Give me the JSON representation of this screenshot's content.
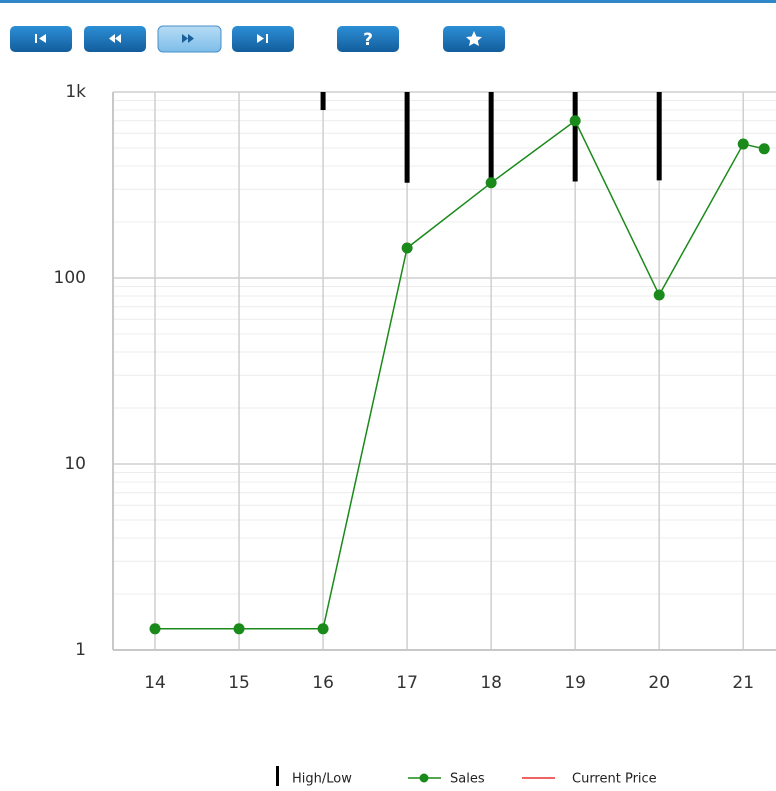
{
  "toolbar": {
    "help_label": "?"
  },
  "chart_data": {
    "type": "line",
    "log_scale": true,
    "grid": true,
    "xlim": [
      13.5,
      21.39
    ],
    "xticks": [
      14,
      15,
      16,
      17,
      18,
      19,
      20,
      21
    ],
    "ylim": [
      1,
      1000
    ],
    "yticks": [
      1,
      10,
      100,
      {
        "value": 1000,
        "label": "1k"
      }
    ],
    "series": [
      {
        "name": "High/Low",
        "type": "highlow",
        "color": "#000000",
        "x": [
          16,
          17,
          18,
          19,
          20
        ],
        "high": [
          1000,
          1000,
          1000,
          1000,
          1000
        ],
        "low": [
          800,
          325,
          325,
          330,
          335
        ]
      },
      {
        "name": "Sales",
        "type": "line",
        "color": "#1a8a1a",
        "x": [
          14,
          15,
          16,
          17,
          18,
          19,
          20,
          21,
          21.25
        ],
        "values": [
          1.3,
          1.3,
          1.3,
          145,
          325,
          700,
          81,
          525,
          495
        ]
      },
      {
        "name": "Current Price",
        "type": "line",
        "color": "#e83030",
        "x": [],
        "values": []
      }
    ]
  }
}
